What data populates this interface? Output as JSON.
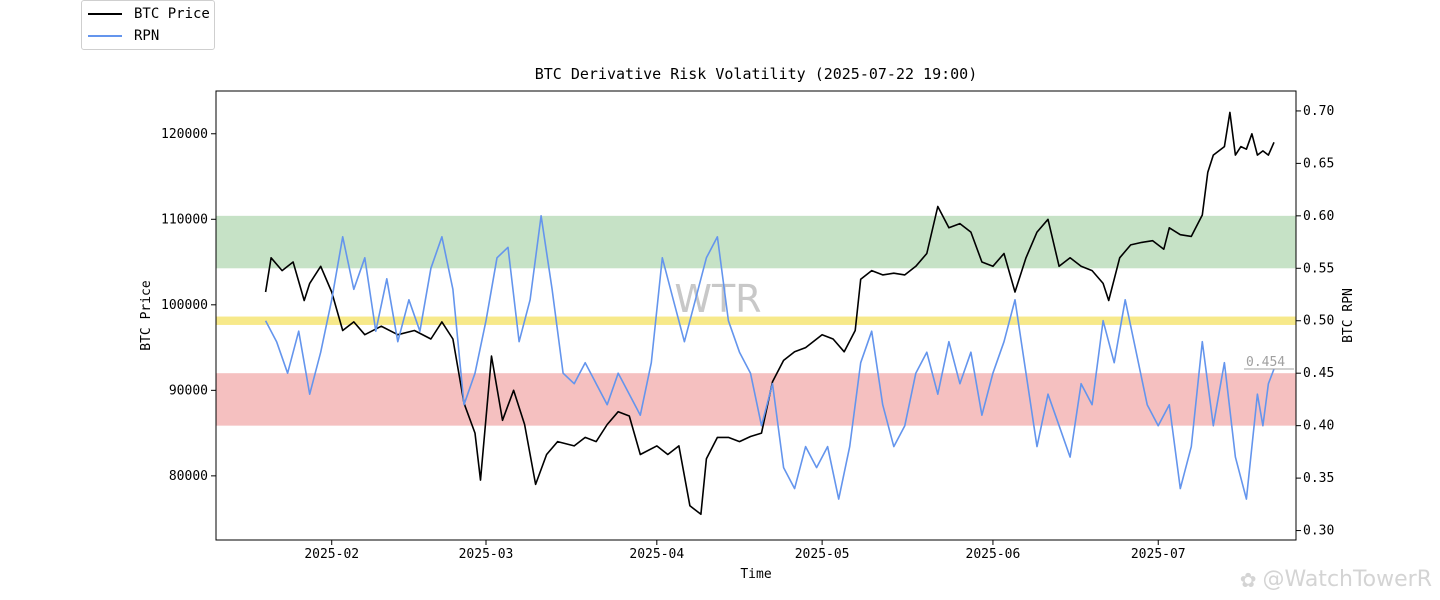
{
  "legend": {
    "btc_label": "BTC Price",
    "rpn_label": "RPN"
  },
  "colors": {
    "btc": "#000000",
    "rpn": "#6495ED",
    "green_zone": "#c6e2c6",
    "yellow_line": "#f7e98a",
    "red_zone": "#f5c0c0",
    "watermark": "#c8c8c8"
  },
  "watermark_text": "WTR",
  "brand_text": "@WatchTowerR",
  "chart_data": {
    "type": "line",
    "title": "BTC Derivative Risk Volatility (2025-07-22 19:00)",
    "xlabel": "Time",
    "ylabel_left": "BTC Price",
    "ylabel_right": "BTC RPN",
    "x_range": [
      "2025-01-11",
      "2025-07-26"
    ],
    "x_ticks": [
      "2025-02",
      "2025-03",
      "2025-04",
      "2025-05",
      "2025-06",
      "2025-07"
    ],
    "y_left_range": [
      72500,
      125000
    ],
    "y_left_ticks": [
      80000,
      90000,
      100000,
      110000,
      120000
    ],
    "y_right_range": [
      0.291,
      0.719
    ],
    "y_right_ticks": [
      "0.30",
      "0.35",
      "0.40",
      "0.45",
      "0.50",
      "0.55",
      "0.60",
      "0.65",
      "0.70"
    ],
    "bands": [
      {
        "name": "green",
        "axis": "right",
        "range": [
          0.55,
          0.6
        ]
      },
      {
        "name": "yellow",
        "axis": "right",
        "range": [
          0.496,
          0.504
        ]
      },
      {
        "name": "red",
        "axis": "right",
        "range": [
          0.4,
          0.45
        ]
      }
    ],
    "last_rpn_label": "0.454",
    "last_rpn_value": 0.454,
    "series": [
      {
        "name": "BTC Price",
        "axis": "left",
        "points": [
          [
            "2025-01-20",
            101500
          ],
          [
            "2025-01-21",
            105500
          ],
          [
            "2025-01-23",
            104000
          ],
          [
            "2025-01-25",
            105000
          ],
          [
            "2025-01-27",
            100500
          ],
          [
            "2025-01-28",
            102500
          ],
          [
            "2025-01-30",
            104500
          ],
          [
            "2025-02-01",
            101500
          ],
          [
            "2025-02-03",
            97000
          ],
          [
            "2025-02-05",
            98000
          ],
          [
            "2025-02-07",
            96500
          ],
          [
            "2025-02-10",
            97500
          ],
          [
            "2025-02-13",
            96500
          ],
          [
            "2025-02-16",
            97000
          ],
          [
            "2025-02-19",
            96000
          ],
          [
            "2025-02-21",
            98000
          ],
          [
            "2025-02-23",
            96000
          ],
          [
            "2025-02-25",
            88500
          ],
          [
            "2025-02-27",
            85000
          ],
          [
            "2025-02-28",
            79500
          ],
          [
            "2025-03-02",
            94000
          ],
          [
            "2025-03-04",
            86500
          ],
          [
            "2025-03-06",
            90000
          ],
          [
            "2025-03-08",
            86000
          ],
          [
            "2025-03-10",
            79000
          ],
          [
            "2025-03-12",
            82500
          ],
          [
            "2025-03-14",
            84000
          ],
          [
            "2025-03-17",
            83500
          ],
          [
            "2025-03-19",
            84500
          ],
          [
            "2025-03-21",
            84000
          ],
          [
            "2025-03-23",
            86000
          ],
          [
            "2025-03-25",
            87500
          ],
          [
            "2025-03-27",
            87000
          ],
          [
            "2025-03-29",
            82500
          ],
          [
            "2025-04-01",
            83500
          ],
          [
            "2025-04-03",
            82500
          ],
          [
            "2025-04-05",
            83500
          ],
          [
            "2025-04-07",
            76500
          ],
          [
            "2025-04-09",
            75500
          ],
          [
            "2025-04-10",
            82000
          ],
          [
            "2025-04-12",
            84500
          ],
          [
            "2025-04-14",
            84500
          ],
          [
            "2025-04-16",
            84000
          ],
          [
            "2025-04-18",
            84600
          ],
          [
            "2025-04-20",
            85000
          ],
          [
            "2025-04-22",
            91000
          ],
          [
            "2025-04-24",
            93500
          ],
          [
            "2025-04-26",
            94500
          ],
          [
            "2025-04-28",
            95000
          ],
          [
            "2025-05-01",
            96500
          ],
          [
            "2025-05-03",
            96000
          ],
          [
            "2025-05-05",
            94500
          ],
          [
            "2025-05-07",
            97000
          ],
          [
            "2025-05-08",
            103000
          ],
          [
            "2025-05-10",
            104000
          ],
          [
            "2025-05-12",
            103500
          ],
          [
            "2025-05-14",
            103700
          ],
          [
            "2025-05-16",
            103500
          ],
          [
            "2025-05-18",
            104500
          ],
          [
            "2025-05-20",
            106000
          ],
          [
            "2025-05-22",
            111500
          ],
          [
            "2025-05-24",
            109000
          ],
          [
            "2025-05-26",
            109500
          ],
          [
            "2025-05-28",
            108500
          ],
          [
            "2025-05-30",
            105000
          ],
          [
            "2025-06-01",
            104500
          ],
          [
            "2025-06-03",
            106000
          ],
          [
            "2025-06-05",
            101500
          ],
          [
            "2025-06-07",
            105500
          ],
          [
            "2025-06-09",
            108500
          ],
          [
            "2025-06-11",
            110000
          ],
          [
            "2025-06-13",
            104500
          ],
          [
            "2025-06-15",
            105500
          ],
          [
            "2025-06-17",
            104500
          ],
          [
            "2025-06-19",
            104000
          ],
          [
            "2025-06-21",
            102500
          ],
          [
            "2025-06-22",
            100500
          ],
          [
            "2025-06-24",
            105500
          ],
          [
            "2025-06-26",
            107000
          ],
          [
            "2025-06-28",
            107300
          ],
          [
            "2025-06-30",
            107500
          ],
          [
            "2025-07-02",
            106500
          ],
          [
            "2025-07-03",
            109000
          ],
          [
            "2025-07-05",
            108200
          ],
          [
            "2025-07-07",
            108000
          ],
          [
            "2025-07-09",
            110500
          ],
          [
            "2025-07-10",
            115500
          ],
          [
            "2025-07-11",
            117500
          ],
          [
            "2025-07-13",
            118500
          ],
          [
            "2025-07-14",
            122500
          ],
          [
            "2025-07-15",
            117500
          ],
          [
            "2025-07-16",
            118500
          ],
          [
            "2025-07-17",
            118200
          ],
          [
            "2025-07-18",
            120000
          ],
          [
            "2025-07-19",
            117500
          ],
          [
            "2025-07-20",
            118000
          ],
          [
            "2025-07-21",
            117500
          ],
          [
            "2025-07-22",
            119000
          ]
        ]
      },
      {
        "name": "RPN",
        "axis": "right",
        "points": [
          [
            "2025-01-20",
            0.5
          ],
          [
            "2025-01-22",
            0.48
          ],
          [
            "2025-01-24",
            0.45
          ],
          [
            "2025-01-26",
            0.49
          ],
          [
            "2025-01-28",
            0.43
          ],
          [
            "2025-01-30",
            0.47
          ],
          [
            "2025-02-01",
            0.52
          ],
          [
            "2025-02-03",
            0.58
          ],
          [
            "2025-02-05",
            0.53
          ],
          [
            "2025-02-07",
            0.56
          ],
          [
            "2025-02-09",
            0.49
          ],
          [
            "2025-02-11",
            0.54
          ],
          [
            "2025-02-13",
            0.48
          ],
          [
            "2025-02-15",
            0.52
          ],
          [
            "2025-02-17",
            0.49
          ],
          [
            "2025-02-19",
            0.55
          ],
          [
            "2025-02-21",
            0.58
          ],
          [
            "2025-02-23",
            0.53
          ],
          [
            "2025-02-25",
            0.42
          ],
          [
            "2025-02-27",
            0.45
          ],
          [
            "2025-03-01",
            0.5
          ],
          [
            "2025-03-03",
            0.56
          ],
          [
            "2025-03-05",
            0.57
          ],
          [
            "2025-03-07",
            0.48
          ],
          [
            "2025-03-09",
            0.52
          ],
          [
            "2025-03-11",
            0.6
          ],
          [
            "2025-03-13",
            0.53
          ],
          [
            "2025-03-15",
            0.45
          ],
          [
            "2025-03-17",
            0.44
          ],
          [
            "2025-03-19",
            0.46
          ],
          [
            "2025-03-21",
            0.44
          ],
          [
            "2025-03-23",
            0.42
          ],
          [
            "2025-03-25",
            0.45
          ],
          [
            "2025-03-27",
            0.43
          ],
          [
            "2025-03-29",
            0.41
          ],
          [
            "2025-03-31",
            0.46
          ],
          [
            "2025-04-02",
            0.56
          ],
          [
            "2025-04-04",
            0.52
          ],
          [
            "2025-04-06",
            0.48
          ],
          [
            "2025-04-08",
            0.52
          ],
          [
            "2025-04-10",
            0.56
          ],
          [
            "2025-04-12",
            0.58
          ],
          [
            "2025-04-14",
            0.5
          ],
          [
            "2025-04-16",
            0.47
          ],
          [
            "2025-04-18",
            0.45
          ],
          [
            "2025-04-20",
            0.4
          ],
          [
            "2025-04-22",
            0.44
          ],
          [
            "2025-04-24",
            0.36
          ],
          [
            "2025-04-26",
            0.34
          ],
          [
            "2025-04-28",
            0.38
          ],
          [
            "2025-04-30",
            0.36
          ],
          [
            "2025-05-02",
            0.38
          ],
          [
            "2025-05-04",
            0.33
          ],
          [
            "2025-05-06",
            0.38
          ],
          [
            "2025-05-08",
            0.46
          ],
          [
            "2025-05-10",
            0.49
          ],
          [
            "2025-05-12",
            0.42
          ],
          [
            "2025-05-14",
            0.38
          ],
          [
            "2025-05-16",
            0.4
          ],
          [
            "2025-05-18",
            0.45
          ],
          [
            "2025-05-20",
            0.47
          ],
          [
            "2025-05-22",
            0.43
          ],
          [
            "2025-05-24",
            0.48
          ],
          [
            "2025-05-26",
            0.44
          ],
          [
            "2025-05-28",
            0.47
          ],
          [
            "2025-05-30",
            0.41
          ],
          [
            "2025-06-01",
            0.45
          ],
          [
            "2025-06-03",
            0.48
          ],
          [
            "2025-06-05",
            0.52
          ],
          [
            "2025-06-07",
            0.45
          ],
          [
            "2025-06-09",
            0.38
          ],
          [
            "2025-06-11",
            0.43
          ],
          [
            "2025-06-13",
            0.4
          ],
          [
            "2025-06-15",
            0.37
          ],
          [
            "2025-06-17",
            0.44
          ],
          [
            "2025-06-19",
            0.42
          ],
          [
            "2025-06-21",
            0.5
          ],
          [
            "2025-06-23",
            0.46
          ],
          [
            "2025-06-25",
            0.52
          ],
          [
            "2025-06-27",
            0.47
          ],
          [
            "2025-06-29",
            0.42
          ],
          [
            "2025-07-01",
            0.4
          ],
          [
            "2025-07-03",
            0.42
          ],
          [
            "2025-07-05",
            0.34
          ],
          [
            "2025-07-07",
            0.38
          ],
          [
            "2025-07-09",
            0.48
          ],
          [
            "2025-07-11",
            0.4
          ],
          [
            "2025-07-13",
            0.46
          ],
          [
            "2025-07-15",
            0.37
          ],
          [
            "2025-07-17",
            0.33
          ],
          [
            "2025-07-19",
            0.43
          ],
          [
            "2025-07-20",
            0.4
          ],
          [
            "2025-07-21",
            0.44
          ],
          [
            "2025-07-22",
            0.454
          ]
        ]
      }
    ]
  }
}
